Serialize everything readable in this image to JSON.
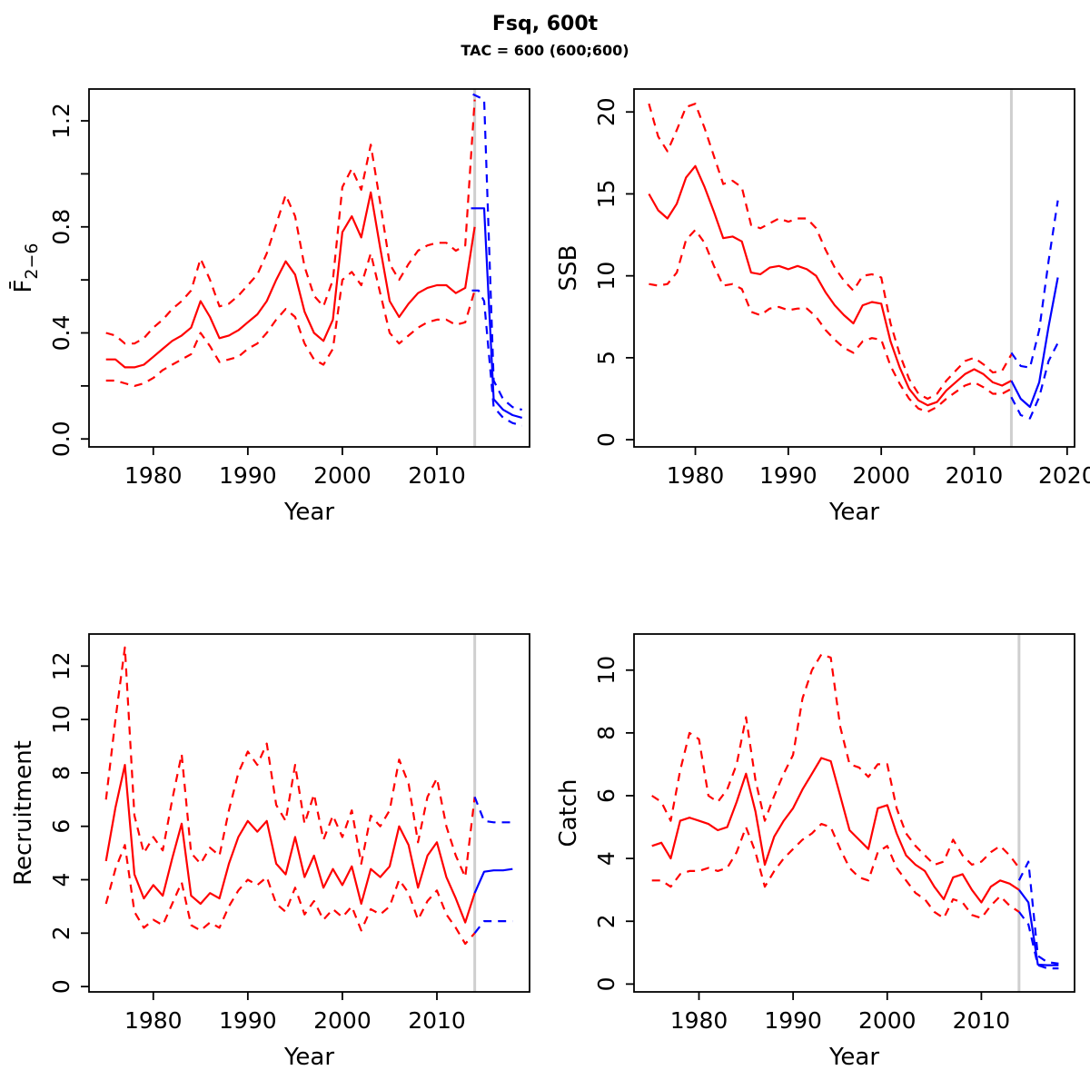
{
  "title": "Fsq, 600t",
  "subtitle": "TAC = 600 (600;600)",
  "colors": {
    "history": "#FF0000",
    "forecast": "#0000FF",
    "divider": "#CFCFCF",
    "axis": "#000000"
  },
  "chart_data": [
    {
      "type": "line",
      "name": "fishing-mortality",
      "ylabel": {
        "base": "F̄",
        "sub": "2−6"
      },
      "xlabel": "Year",
      "xlim": [
        1973.2,
        2019.8
      ],
      "ylim": [
        -0.03,
        1.32
      ],
      "xticks": [
        1980,
        1990,
        2000,
        2010
      ],
      "xtick_labels": [
        "1980",
        "1990",
        "2000",
        "2010"
      ],
      "yticks": [
        0,
        0.2,
        0.4,
        0.6,
        0.8,
        1.0,
        1.2
      ],
      "ytick_labels": [
        "0.0",
        "",
        "0.4",
        "",
        "0.8",
        "",
        "1.2"
      ],
      "vline_x": 2014,
      "years_hist": [
        1975,
        1976,
        1977,
        1978,
        1979,
        1980,
        1981,
        1982,
        1983,
        1984,
        1985,
        1986,
        1987,
        1988,
        1989,
        1990,
        1991,
        1992,
        1993,
        1994,
        1995,
        1996,
        1997,
        1998,
        1999,
        2000,
        2001,
        2002,
        2003,
        2004,
        2005,
        2006,
        2007,
        2008,
        2009,
        2010,
        2011,
        2012,
        2013,
        2014
      ],
      "series": [
        {
          "name": "ci-upper-history",
          "role": "history",
          "style": "dashed",
          "y": [
            0.4,
            0.39,
            0.36,
            0.36,
            0.38,
            0.42,
            0.45,
            0.49,
            0.52,
            0.56,
            0.68,
            0.6,
            0.5,
            0.51,
            0.54,
            0.58,
            0.62,
            0.7,
            0.81,
            0.92,
            0.84,
            0.65,
            0.54,
            0.5,
            0.6,
            0.95,
            1.02,
            0.94,
            1.11,
            0.89,
            0.66,
            0.6,
            0.66,
            0.71,
            0.73,
            0.74,
            0.74,
            0.71,
            0.73,
            1.28
          ]
        },
        {
          "name": "ci-lower-history",
          "role": "history",
          "style": "dashed",
          "y": [
            0.22,
            0.22,
            0.21,
            0.2,
            0.21,
            0.23,
            0.26,
            0.28,
            0.3,
            0.32,
            0.4,
            0.35,
            0.29,
            0.3,
            0.31,
            0.34,
            0.36,
            0.4,
            0.45,
            0.49,
            0.46,
            0.36,
            0.3,
            0.28,
            0.34,
            0.6,
            0.63,
            0.58,
            0.7,
            0.55,
            0.4,
            0.36,
            0.39,
            0.42,
            0.44,
            0.45,
            0.45,
            0.43,
            0.44,
            0.56
          ]
        },
        {
          "name": "median-history",
          "role": "history",
          "style": "solid",
          "y": [
            0.3,
            0.3,
            0.27,
            0.27,
            0.28,
            0.31,
            0.34,
            0.37,
            0.39,
            0.42,
            0.52,
            0.46,
            0.38,
            0.39,
            0.41,
            0.44,
            0.47,
            0.52,
            0.6,
            0.67,
            0.62,
            0.48,
            0.4,
            0.37,
            0.45,
            0.78,
            0.84,
            0.76,
            0.93,
            0.72,
            0.52,
            0.46,
            0.51,
            0.55,
            0.57,
            0.58,
            0.58,
            0.55,
            0.57,
            0.8
          ]
        },
        {
          "name": "ci-upper-forecast",
          "role": "forecast",
          "style": "dashed",
          "x": [
            2013.8,
            2015,
            2016,
            2017,
            2018,
            2019
          ],
          "y": [
            1.3,
            1.28,
            0.22,
            0.15,
            0.12,
            0.11
          ]
        },
        {
          "name": "ci-lower-forecast",
          "role": "forecast",
          "style": "dashed",
          "x": [
            2013.7,
            2014.4,
            2015,
            2016,
            2017,
            2018,
            2019
          ],
          "y": [
            0.56,
            0.56,
            0.52,
            0.12,
            0.08,
            0.06,
            0.05
          ]
        },
        {
          "name": "median-forecast",
          "role": "forecast",
          "style": "solid",
          "x": [
            2013.6,
            2015,
            2016,
            2017,
            2018,
            2019
          ],
          "y": [
            0.87,
            0.87,
            0.15,
            0.11,
            0.09,
            0.08
          ]
        }
      ]
    },
    {
      "type": "line",
      "name": "ssb",
      "ylabel": {
        "base": "SSB",
        "sub": ""
      },
      "xlabel": "Year",
      "xlim": [
        1973.4,
        2020.8
      ],
      "ylim": [
        -0.44,
        21.4
      ],
      "xticks": [
        1980,
        1990,
        2000,
        2010,
        2020
      ],
      "xtick_labels": [
        "1980",
        "1990",
        "2000",
        "2010",
        "2020"
      ],
      "yticks": [
        0,
        5,
        10,
        15,
        20
      ],
      "ytick_labels": [
        "0",
        "5",
        "10",
        "15",
        "20"
      ],
      "vline_x": 2014,
      "years_hist": [
        1975,
        1976,
        1977,
        1978,
        1979,
        1980,
        1981,
        1982,
        1983,
        1984,
        1985,
        1986,
        1987,
        1988,
        1989,
        1990,
        1991,
        1992,
        1993,
        1994,
        1995,
        1996,
        1997,
        1998,
        1999,
        2000,
        2001,
        2002,
        2003,
        2004,
        2005,
        2006,
        2007,
        2008,
        2009,
        2010,
        2011,
        2012,
        2013,
        2014
      ],
      "series": [
        {
          "name": "ci-upper-history",
          "role": "history",
          "style": "dashed",
          "y": [
            20.5,
            18.5,
            17.6,
            18.9,
            20.3,
            20.5,
            19.0,
            17.3,
            15.6,
            15.8,
            15.4,
            13.1,
            12.9,
            13.2,
            13.5,
            13.3,
            13.5,
            13.5,
            12.9,
            11.6,
            10.5,
            9.7,
            9.1,
            10.0,
            10.1,
            9.9,
            7.1,
            5.2,
            3.7,
            2.8,
            2.5,
            2.8,
            3.6,
            4.2,
            4.8,
            5.0,
            4.6,
            4.1,
            4.2,
            5.2
          ]
        },
        {
          "name": "ci-lower-history",
          "role": "history",
          "style": "dashed",
          "y": [
            9.5,
            9.4,
            9.5,
            10.2,
            12.2,
            12.8,
            12.0,
            10.6,
            9.4,
            9.5,
            9.2,
            7.8,
            7.6,
            8.0,
            8.1,
            7.9,
            8.0,
            8.0,
            7.5,
            6.7,
            6.1,
            5.6,
            5.3,
            6.0,
            6.2,
            6.1,
            4.5,
            3.4,
            2.5,
            1.9,
            1.7,
            2.0,
            2.5,
            2.9,
            3.3,
            3.5,
            3.2,
            2.8,
            2.8,
            3.1
          ]
        },
        {
          "name": "median-history",
          "role": "history",
          "style": "solid",
          "y": [
            15.0,
            14.0,
            13.5,
            14.4,
            16.0,
            16.7,
            15.4,
            13.9,
            12.3,
            12.4,
            12.1,
            10.2,
            10.1,
            10.5,
            10.6,
            10.4,
            10.6,
            10.4,
            10.0,
            9.0,
            8.2,
            7.6,
            7.1,
            8.2,
            8.4,
            8.3,
            6.0,
            4.4,
            3.1,
            2.4,
            2.1,
            2.3,
            3.0,
            3.5,
            4.0,
            4.3,
            4.0,
            3.5,
            3.3,
            3.6
          ]
        },
        {
          "name": "ci-upper-forecast",
          "role": "forecast",
          "style": "dashed",
          "x": [
            2014,
            2015,
            2016,
            2017,
            2018,
            2019
          ],
          "y": [
            5.3,
            4.5,
            4.4,
            6.7,
            10.9,
            14.6
          ]
        },
        {
          "name": "ci-lower-forecast",
          "role": "forecast",
          "style": "dashed",
          "x": [
            2014,
            2015,
            2016,
            2017,
            2018,
            2019
          ],
          "y": [
            2.6,
            1.5,
            1.3,
            2.6,
            4.8,
            5.9
          ]
        },
        {
          "name": "median-forecast",
          "role": "forecast",
          "style": "solid",
          "x": [
            2014,
            2015,
            2016,
            2017,
            2018,
            2019
          ],
          "y": [
            3.6,
            2.5,
            2.0,
            3.5,
            6.9,
            9.9
          ]
        }
      ]
    },
    {
      "type": "line",
      "name": "recruitment",
      "ylabel": {
        "base": "Recruitment",
        "sub": ""
      },
      "xlabel": "Year",
      "xlim": [
        1973.2,
        2019.8
      ],
      "ylim": [
        -0.2,
        13.2
      ],
      "xticks": [
        1980,
        1990,
        2000,
        2010
      ],
      "xtick_labels": [
        "1980",
        "1990",
        "2000",
        "2010"
      ],
      "yticks": [
        0,
        2,
        4,
        6,
        8,
        10,
        12
      ],
      "ytick_labels": [
        "0",
        "2",
        "4",
        "6",
        "8",
        "10",
        "12"
      ],
      "vline_x": 2014,
      "years_hist": [
        1975,
        1976,
        1977,
        1978,
        1979,
        1980,
        1981,
        1982,
        1983,
        1984,
        1985,
        1986,
        1987,
        1988,
        1989,
        1990,
        1991,
        1992,
        1993,
        1994,
        1995,
        1996,
        1997,
        1998,
        1999,
        2000,
        2001,
        2002,
        2003,
        2004,
        2005,
        2006,
        2007,
        2008,
        2009,
        2010,
        2011,
        2012,
        2013,
        2014
      ],
      "series": [
        {
          "name": "ci-upper-history",
          "role": "history",
          "style": "dashed",
          "y": [
            7.0,
            10.0,
            12.7,
            6.4,
            5.0,
            5.6,
            5.1,
            7.0,
            8.7,
            5.0,
            4.6,
            5.2,
            4.9,
            6.6,
            8.0,
            8.8,
            8.3,
            9.1,
            6.8,
            6.2,
            8.3,
            6.1,
            7.2,
            5.5,
            6.4,
            5.6,
            6.6,
            4.6,
            6.4,
            6.0,
            6.6,
            8.5,
            7.6,
            5.4,
            7.1,
            7.8,
            6.0,
            4.9,
            4.1,
            7.1
          ]
        },
        {
          "name": "ci-lower-history",
          "role": "history",
          "style": "dashed",
          "y": [
            3.1,
            4.4,
            5.3,
            2.8,
            2.2,
            2.5,
            2.3,
            3.1,
            3.9,
            2.3,
            2.1,
            2.4,
            2.2,
            3.0,
            3.6,
            4.0,
            3.8,
            4.1,
            3.1,
            2.8,
            3.7,
            2.7,
            3.2,
            2.5,
            2.9,
            2.6,
            3.0,
            2.1,
            2.9,
            2.7,
            3.0,
            4.0,
            3.5,
            2.5,
            3.2,
            3.6,
            2.7,
            2.2,
            1.6,
            2.0
          ]
        },
        {
          "name": "median-history",
          "role": "history",
          "style": "solid",
          "y": [
            4.7,
            6.7,
            8.3,
            4.2,
            3.3,
            3.8,
            3.4,
            4.8,
            6.1,
            3.4,
            3.1,
            3.5,
            3.3,
            4.6,
            5.6,
            6.2,
            5.8,
            6.2,
            4.6,
            4.2,
            5.6,
            4.1,
            4.9,
            3.7,
            4.4,
            3.8,
            4.5,
            3.1,
            4.4,
            4.1,
            4.5,
            6.0,
            5.3,
            3.7,
            4.9,
            5.4,
            4.1,
            3.3,
            2.4,
            3.5
          ]
        },
        {
          "name": "ci-upper-forecast",
          "role": "forecast",
          "style": "dashed",
          "x": [
            2014,
            2015,
            2016,
            2017,
            2018
          ],
          "y": [
            7.1,
            6.2,
            6.15,
            6.15,
            6.15
          ]
        },
        {
          "name": "ci-lower-forecast",
          "role": "forecast",
          "style": "dashed",
          "x": [
            2014,
            2015,
            2016,
            2017,
            2018
          ],
          "y": [
            2.0,
            2.45,
            2.45,
            2.45,
            2.45
          ]
        },
        {
          "name": "median-forecast",
          "role": "forecast",
          "style": "solid",
          "x": [
            2014,
            2015,
            2016,
            2017,
            2018
          ],
          "y": [
            3.5,
            4.3,
            4.35,
            4.35,
            4.4
          ]
        }
      ]
    },
    {
      "type": "line",
      "name": "catch",
      "ylabel": {
        "base": "Catch",
        "sub": ""
      },
      "xlabel": "Year",
      "xlim": [
        1973.1,
        2019.9
      ],
      "ylim": [
        -0.25,
        11.15
      ],
      "xticks": [
        1980,
        1990,
        2000,
        2010
      ],
      "xtick_labels": [
        "1980",
        "1990",
        "2000",
        "2010"
      ],
      "yticks": [
        0,
        2,
        4,
        6,
        8,
        10
      ],
      "ytick_labels": [
        "0",
        "2",
        "4",
        "6",
        "8",
        "10"
      ],
      "vline_x": 2014,
      "years_hist": [
        1975,
        1976,
        1977,
        1978,
        1979,
        1980,
        1981,
        1982,
        1983,
        1984,
        1985,
        1986,
        1987,
        1988,
        1989,
        1990,
        1991,
        1992,
        1993,
        1994,
        1995,
        1996,
        1997,
        1998,
        1999,
        2000,
        2001,
        2002,
        2003,
        2004,
        2005,
        2006,
        2007,
        2008,
        2009,
        2010,
        2011,
        2012,
        2013,
        2014
      ],
      "series": [
        {
          "name": "ci-upper-history",
          "role": "history",
          "style": "dashed",
          "y": [
            6.0,
            5.8,
            5.2,
            6.8,
            8.0,
            7.8,
            6.0,
            5.8,
            6.2,
            7.0,
            8.5,
            6.5,
            5.2,
            6.0,
            6.7,
            7.3,
            9.1,
            10.0,
            10.5,
            10.4,
            8.2,
            7.0,
            6.9,
            6.6,
            7.0,
            7.0,
            5.6,
            4.8,
            4.4,
            4.1,
            3.8,
            3.9,
            4.6,
            4.1,
            3.8,
            3.9,
            4.2,
            4.4,
            4.1,
            3.7
          ]
        },
        {
          "name": "ci-lower-history",
          "role": "history",
          "style": "dashed",
          "y": [
            3.3,
            3.3,
            3.1,
            3.5,
            3.6,
            3.6,
            3.7,
            3.6,
            3.7,
            4.2,
            5.0,
            4.2,
            3.1,
            3.6,
            4.0,
            4.3,
            4.6,
            4.8,
            5.1,
            5.0,
            4.3,
            3.7,
            3.4,
            3.3,
            4.2,
            4.4,
            3.7,
            3.3,
            2.9,
            2.7,
            2.3,
            2.1,
            2.7,
            2.6,
            2.2,
            2.1,
            2.5,
            2.8,
            2.5,
            2.3
          ]
        },
        {
          "name": "median-history",
          "role": "history",
          "style": "solid",
          "y": [
            4.4,
            4.5,
            4.0,
            5.2,
            5.3,
            5.2,
            5.1,
            4.9,
            5.0,
            5.8,
            6.7,
            5.5,
            3.8,
            4.7,
            5.2,
            5.6,
            6.2,
            6.7,
            7.2,
            7.1,
            6.0,
            4.9,
            4.6,
            4.3,
            5.6,
            5.7,
            4.8,
            4.1,
            3.8,
            3.6,
            3.1,
            2.7,
            3.4,
            3.5,
            3.0,
            2.6,
            3.1,
            3.3,
            3.2,
            3.0
          ]
        },
        {
          "name": "ci-upper-forecast",
          "role": "forecast",
          "style": "dashed",
          "x": [
            2014,
            2015,
            2016,
            2017,
            2018.2
          ],
          "y": [
            3.3,
            3.9,
            0.9,
            0.7,
            0.65
          ]
        },
        {
          "name": "ci-lower-forecast",
          "role": "forecast",
          "style": "dashed",
          "x": [
            2014,
            2015,
            2016,
            2017,
            2018.2
          ],
          "y": [
            2.3,
            1.9,
            0.6,
            0.5,
            0.5
          ]
        },
        {
          "name": "median-forecast",
          "role": "forecast",
          "style": "solid",
          "x": [
            2014,
            2015,
            2016,
            2017,
            2018.2
          ],
          "y": [
            3.0,
            2.6,
            0.62,
            0.6,
            0.6
          ]
        }
      ]
    }
  ]
}
